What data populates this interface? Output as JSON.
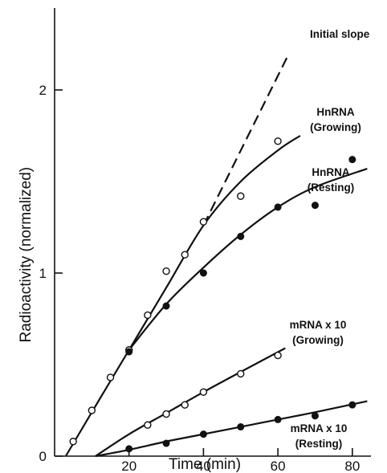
{
  "chart_data": {
    "type": "line",
    "title": "",
    "xlabel": "Time (min)",
    "ylabel": "Radioactivity (normalized)",
    "xlim": [
      0,
      85
    ],
    "ylim": [
      0,
      2.3
    ],
    "x_ticks": [
      20,
      40,
      60,
      80
    ],
    "y_ticks": [
      0,
      1,
      2
    ],
    "grid": false,
    "legend": "none",
    "series": [
      {
        "name": "HnRNA (Growing)",
        "marker": "open-circle",
        "curve_style": "solid",
        "points": [
          [
            5,
            0.08
          ],
          [
            10,
            0.25
          ],
          [
            15,
            0.43
          ],
          [
            20,
            0.58
          ],
          [
            25,
            0.77
          ],
          [
            30,
            1.01
          ],
          [
            35,
            1.1
          ],
          [
            40,
            1.28
          ],
          [
            50,
            1.42
          ],
          [
            60,
            1.72
          ]
        ],
        "curve": [
          [
            3,
            0
          ],
          [
            10,
            0.24
          ],
          [
            20,
            0.58
          ],
          [
            30,
            0.92
          ],
          [
            40,
            1.26
          ],
          [
            50,
            1.5
          ],
          [
            60,
            1.67
          ],
          [
            66,
            1.75
          ]
        ]
      },
      {
        "name": "HnRNA (Resting)",
        "marker": "filled-circle",
        "curve_style": "solid",
        "points": [
          [
            20,
            0.57
          ],
          [
            30,
            0.82
          ],
          [
            40,
            1.0
          ],
          [
            50,
            1.2
          ],
          [
            60,
            1.36
          ],
          [
            70,
            1.37
          ],
          [
            80,
            1.62
          ]
        ],
        "curve": [
          [
            20,
            0.58
          ],
          [
            30,
            0.83
          ],
          [
            40,
            1.03
          ],
          [
            50,
            1.21
          ],
          [
            60,
            1.36
          ],
          [
            70,
            1.47
          ],
          [
            84,
            1.57
          ]
        ]
      },
      {
        "name": "Initial slope",
        "marker": "none",
        "curve_style": "dashed",
        "points": [],
        "curve": [
          [
            40,
            1.26
          ],
          [
            63,
            2.2
          ]
        ]
      },
      {
        "name": "mRNA x 10 (Growing)",
        "marker": "open-circle",
        "curve_style": "solid",
        "points": [
          [
            25,
            0.17
          ],
          [
            30,
            0.23
          ],
          [
            35,
            0.28
          ],
          [
            40,
            0.35
          ],
          [
            50,
            0.45
          ],
          [
            60,
            0.55
          ]
        ],
        "curve": [
          [
            11,
            0
          ],
          [
            20,
            0.12
          ],
          [
            30,
            0.235
          ],
          [
            40,
            0.35
          ],
          [
            50,
            0.46
          ],
          [
            62,
            0.59
          ]
        ]
      },
      {
        "name": "mRNA x 10 (Resting)",
        "marker": "filled-circle",
        "curve_style": "solid",
        "points": [
          [
            20,
            0.04
          ],
          [
            30,
            0.07
          ],
          [
            40,
            0.12
          ],
          [
            50,
            0.16
          ],
          [
            60,
            0.2
          ],
          [
            70,
            0.22
          ],
          [
            80,
            0.28
          ]
        ],
        "curve": [
          [
            11,
            0
          ],
          [
            20,
            0.035
          ],
          [
            30,
            0.08
          ],
          [
            40,
            0.12
          ],
          [
            50,
            0.16
          ],
          [
            60,
            0.2
          ],
          [
            70,
            0.24
          ],
          [
            84,
            0.3
          ]
        ]
      }
    ],
    "annotations": [
      {
        "id": "initial-slope",
        "lines": [
          "Initial slope"
        ]
      },
      {
        "id": "hnrna-growing",
        "lines": [
          "HnRNA",
          "(Growing)"
        ]
      },
      {
        "id": "hnrna-resting",
        "lines": [
          "HnRNA",
          "(Resting)"
        ]
      },
      {
        "id": "mrna-growing",
        "lines": [
          "mRNA x 10",
          "(Growing)"
        ]
      },
      {
        "id": "mrna-resting",
        "lines": [
          "mRNA x 10",
          "(Resting)"
        ]
      }
    ]
  }
}
